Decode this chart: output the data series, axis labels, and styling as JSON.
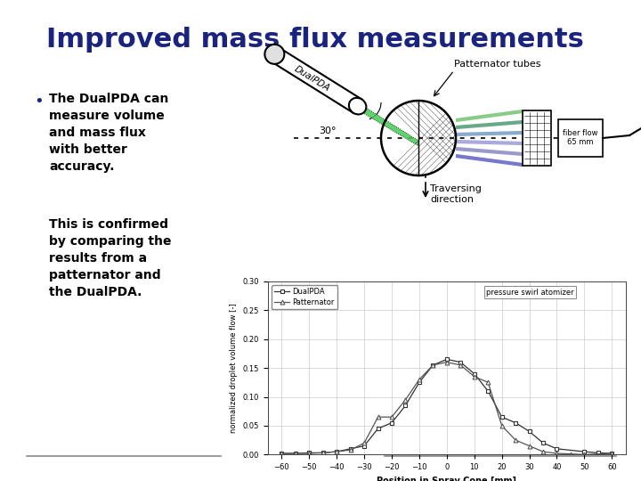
{
  "title": "Improved mass flux measurements",
  "title_color": "#1a237e",
  "title_fontsize": 22,
  "bullet_color": "#1a237e",
  "bullet_text_1": "The DualPDA can\nmeasure volume\nand mass flux\nwith better\naccuracy.",
  "bullet_text_2": "This is confirmed\nby comparing the\nresults from a\npatternator and\nthe DualPDA.",
  "patternator_label": "Patternator tubes",
  "traversing_label": "Traversing\ndirection",
  "angle_label": "30°",
  "fiber_label": "fiber flow\n65 mm",
  "pressure_label": "pressure swirl atomizer",
  "legend_dualpda": "DualPDA",
  "legend_patternator": "Patternator",
  "xlabel": "Position in Spray Cone [mm]",
  "ylabel": "normalized droplet volume flow [-]",
  "xlim": [
    -65,
    65
  ],
  "ylim": [
    0,
    0.3
  ],
  "xticks": [
    -60,
    -50,
    -40,
    -30,
    -20,
    -10,
    0,
    10,
    20,
    30,
    40,
    50,
    60
  ],
  "yticks": [
    0,
    0.05,
    0.1,
    0.15,
    0.2,
    0.25,
    0.3
  ],
  "dualpda_x": [
    -60,
    -55,
    -50,
    -45,
    -40,
    -35,
    -30,
    -25,
    -20,
    -15,
    -10,
    -5,
    0,
    5,
    10,
    15,
    20,
    25,
    30,
    35,
    40,
    50,
    55,
    60
  ],
  "dualpda_y": [
    0.002,
    0.002,
    0.003,
    0.003,
    0.005,
    0.01,
    0.015,
    0.045,
    0.055,
    0.085,
    0.125,
    0.155,
    0.165,
    0.16,
    0.14,
    0.11,
    0.065,
    0.055,
    0.04,
    0.02,
    0.01,
    0.005,
    0.003,
    0.002
  ],
  "patternator_x": [
    -60,
    -55,
    -50,
    -45,
    -40,
    -35,
    -30,
    -25,
    -20,
    -15,
    -10,
    -5,
    0,
    5,
    10,
    15,
    20,
    25,
    30,
    35,
    40,
    45,
    50,
    60
  ],
  "patternator_y": [
    0.002,
    0.002,
    0.002,
    0.003,
    0.005,
    0.008,
    0.02,
    0.065,
    0.065,
    0.095,
    0.13,
    0.155,
    0.16,
    0.155,
    0.135,
    0.125,
    0.05,
    0.025,
    0.015,
    0.005,
    0.002,
    0.001,
    0.0,
    0.002
  ],
  "bg_color": "#ffffff",
  "grid_color": "#cccccc",
  "footer_line_color": "#888888"
}
